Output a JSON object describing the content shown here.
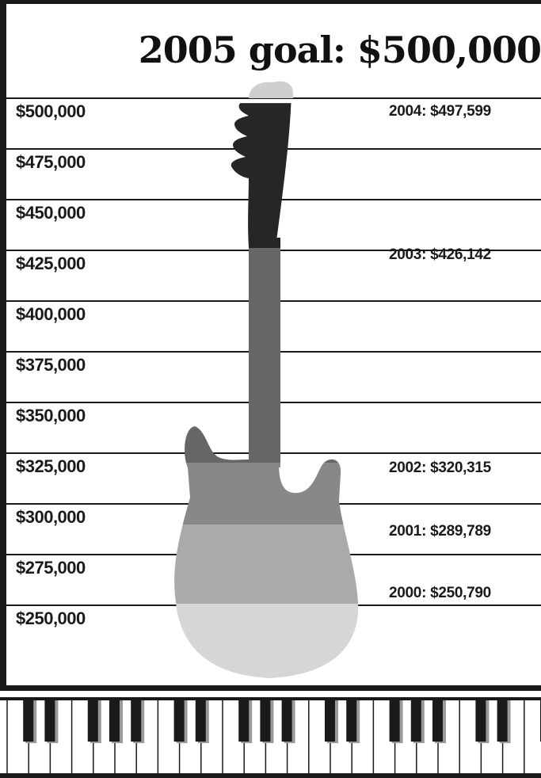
{
  "header": {
    "top_text": "",
    "goal_title": "2005 goal: $500,000"
  },
  "colors": {
    "grid_line": "#1a1a1a",
    "frame": "#1a1a1a",
    "year_2000": "#d6d6d6",
    "year_2001": "#aaaaaa",
    "year_2002": "#888888",
    "year_2003": "#666666",
    "year_2004": "#262626",
    "headstock_cap": "#cfcfcf"
  },
  "chart_data": {
    "type": "bar",
    "title": "2005 goal: $500,000",
    "xlabel": "",
    "ylabel": "",
    "ylim": [
      250000,
      500000
    ],
    "yticks": [
      500000,
      475000,
      450000,
      425000,
      400000,
      375000,
      350000,
      325000,
      300000,
      275000,
      250000
    ],
    "ytick_labels": [
      "$500,000",
      "$475,000",
      "$450,000",
      "$425,000",
      "$400,000",
      "$375,000",
      "$350,000",
      "$325,000",
      "$300,000",
      "$275,000",
      "$250,000"
    ],
    "grid": true,
    "categories": [
      "2000",
      "2001",
      "2002",
      "2003",
      "2004"
    ],
    "values": [
      250790,
      289789,
      320315,
      426142,
      497599
    ],
    "annotations": [
      "2000: $250,790",
      "2001: $289,789",
      "2002: $320,315",
      "2003: $426,142",
      "2004: $497,599"
    ],
    "goal": 500000
  }
}
